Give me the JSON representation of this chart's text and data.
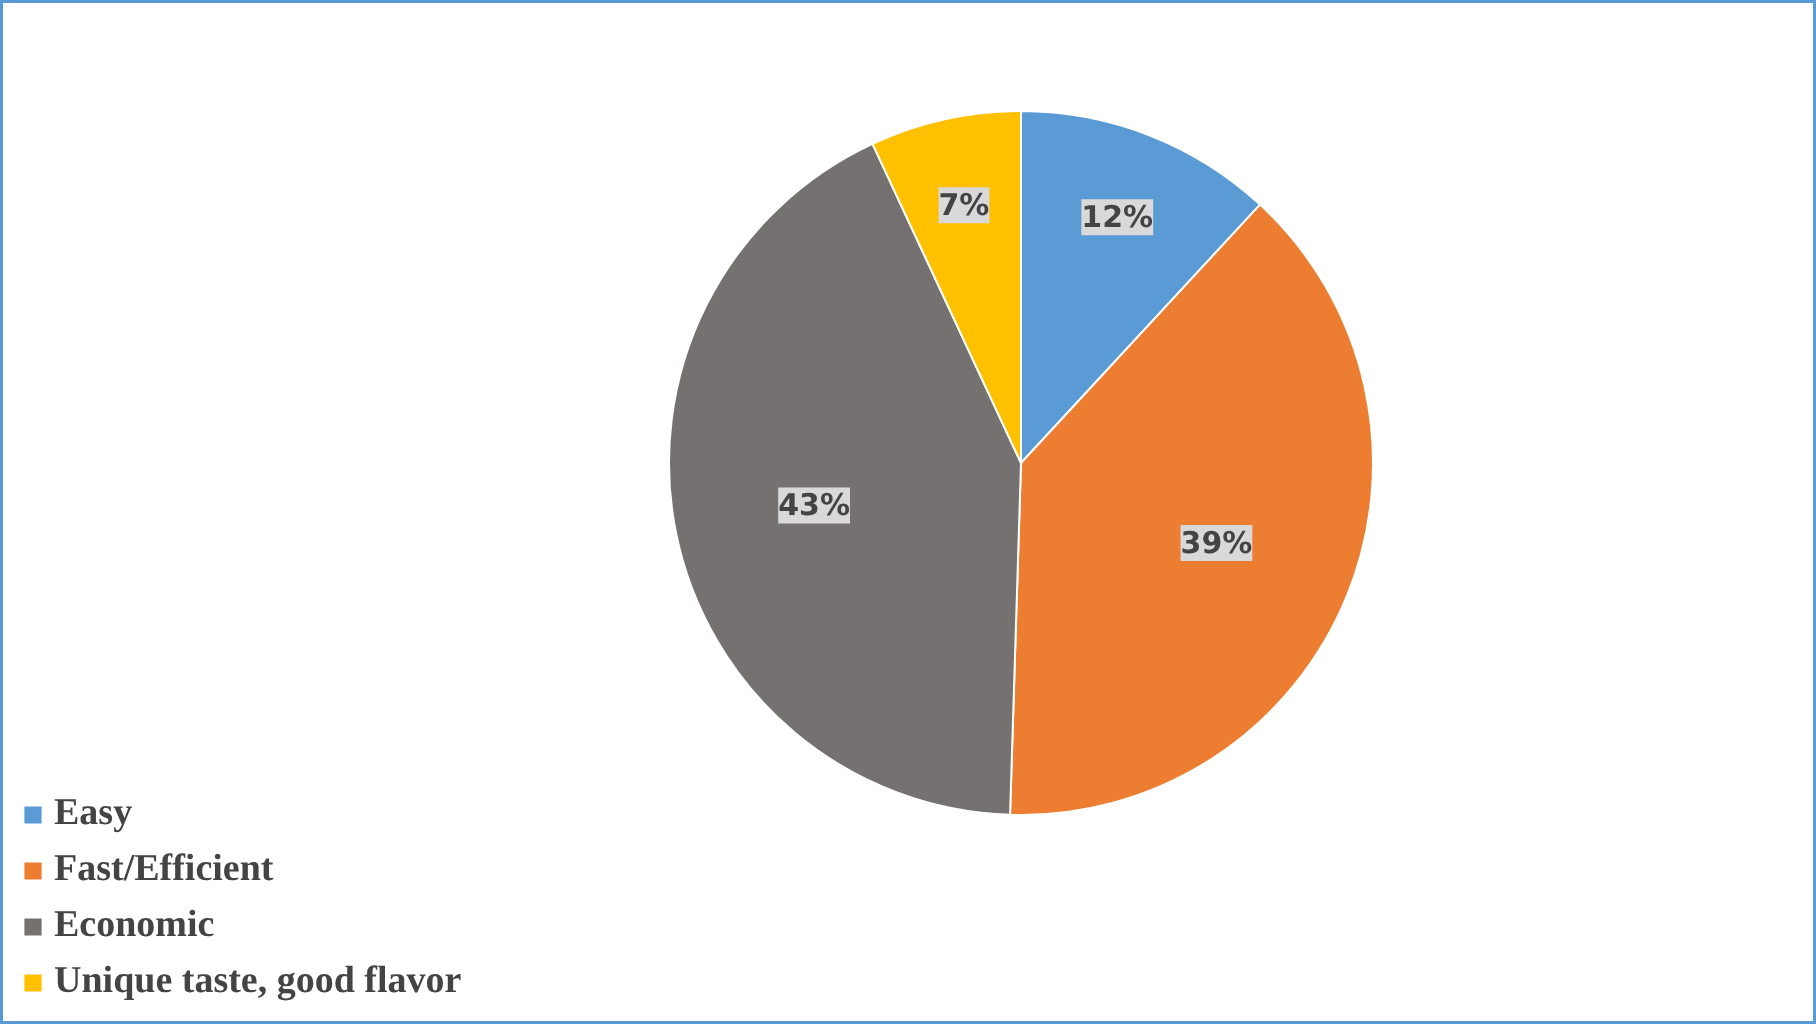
{
  "chart_data": {
    "type": "pie",
    "categories": [
      "Easy",
      "Fast/Efficient",
      "Economic",
      "Unique taste, good flavor"
    ],
    "values": [
      12,
      39,
      43,
      7
    ],
    "colors": [
      "#5b9bd5",
      "#ed7d31",
      "#767171",
      "#ffc000"
    ],
    "value_labels": [
      "12%",
      "39%",
      "43%",
      "7%"
    ],
    "legend": "bottom left"
  }
}
